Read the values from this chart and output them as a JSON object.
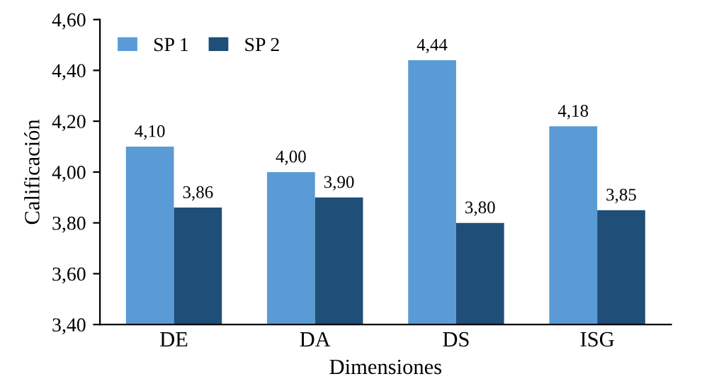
{
  "chart_data": {
    "type": "bar",
    "xlabel": "Dimensiones",
    "ylabel": "Calificación",
    "categories": [
      "DE",
      "DA",
      "DS",
      "ISG"
    ],
    "series": [
      {
        "name": "SP 1",
        "color": "#5b9bd5",
        "values": [
          4.1,
          4.0,
          4.44,
          4.18
        ],
        "value_labels": [
          "4,10",
          "4,00",
          "4,44",
          "4,18"
        ]
      },
      {
        "name": "SP 2",
        "color": "#1f4e79",
        "values": [
          3.86,
          3.9,
          3.8,
          3.85
        ],
        "value_labels": [
          "3,86",
          "3,90",
          "3,80",
          "3,85"
        ]
      }
    ],
    "ylim": [
      3.4,
      4.6
    ],
    "yticks": [
      {
        "value": 3.4,
        "label": "3,40"
      },
      {
        "value": 3.6,
        "label": "3,60"
      },
      {
        "value": 3.8,
        "label": "3,80"
      },
      {
        "value": 4.0,
        "label": "4,00"
      },
      {
        "value": 4.2,
        "label": "4,20"
      },
      {
        "value": 4.4,
        "label": "4,40"
      },
      {
        "value": 4.6,
        "label": "4,60"
      }
    ],
    "grid": false,
    "legend": "top left"
  }
}
